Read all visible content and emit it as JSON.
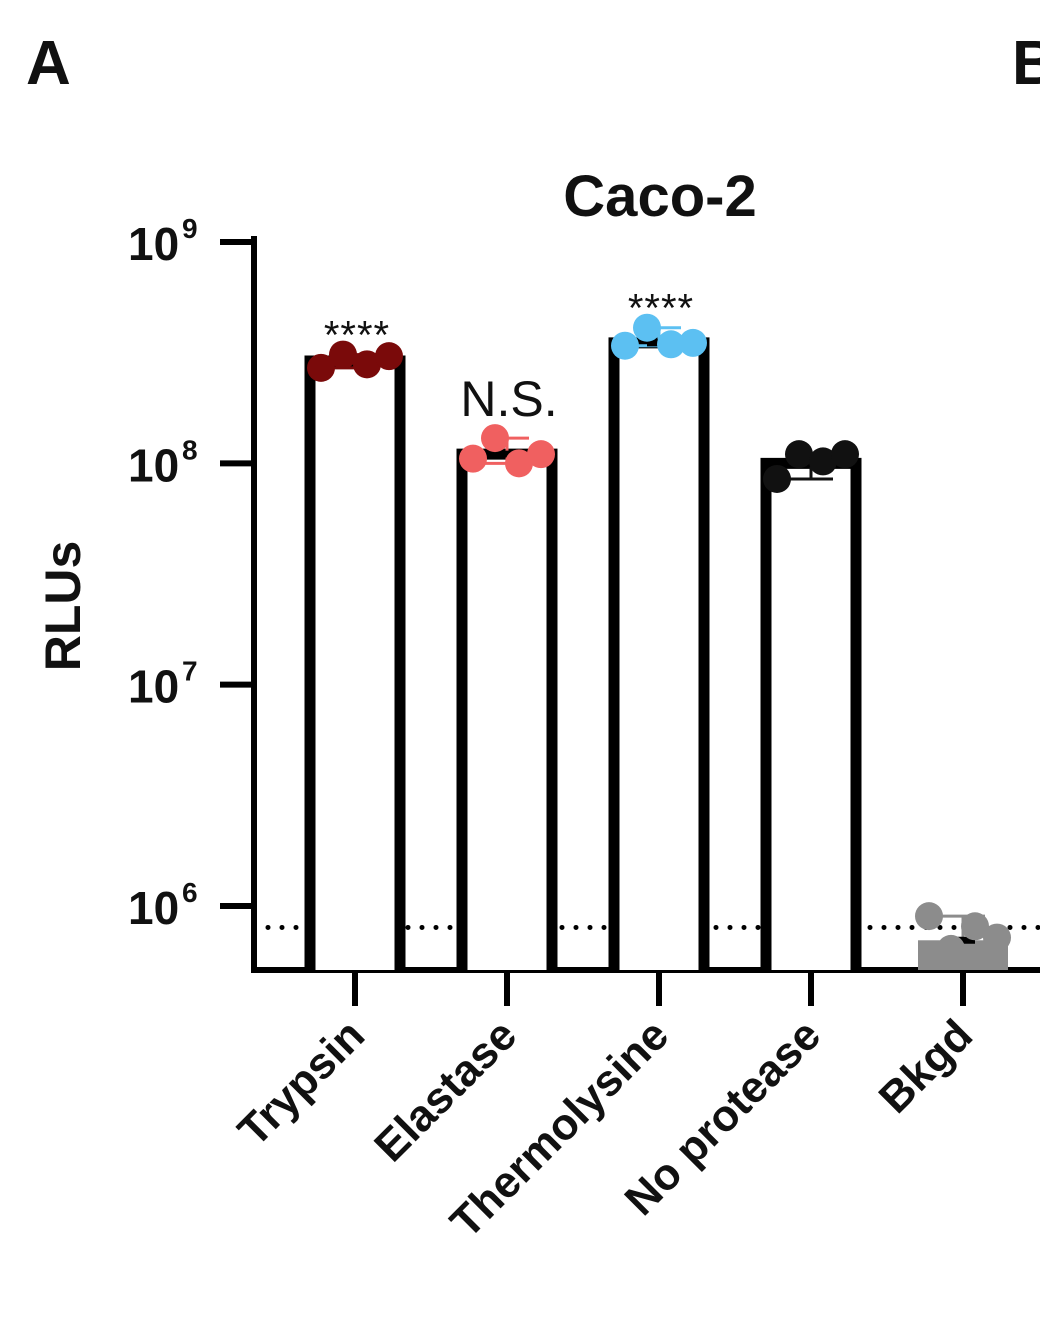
{
  "panel_letter": "A",
  "panel_letter_next": "B",
  "chart_data": {
    "type": "bar",
    "title": "Caco-2",
    "xlabel": "",
    "ylabel": "RLUs",
    "yscale": "log",
    "ylim": [
      550000,
      1000000000
    ],
    "yticks": [
      {
        "base": "10",
        "exp": "9",
        "value": 1000000000
      },
      {
        "base": "10",
        "exp": "8",
        "value": 100000000
      },
      {
        "base": "10",
        "exp": "7",
        "value": 10000000
      },
      {
        "base": "10",
        "exp": "6",
        "value": 1000000
      }
    ],
    "categories": [
      "Trypsin",
      "Elastase",
      "Thermolysine",
      "No protease",
      "Bkgd"
    ],
    "values": [
      290000000,
      110000000,
      350000000,
      100000000,
      700000
    ],
    "points": [
      [
        270000000,
        310000000,
        280000000,
        305000000
      ],
      [
        105000000,
        130000000,
        100000000,
        110000000
      ],
      [
        340000000,
        410000000,
        345000000,
        350000000
      ],
      [
        85000000,
        110000000,
        102000000,
        110000000
      ],
      [
        900000,
        640000,
        810000,
        720000
      ]
    ],
    "colors": [
      "#7a0a0a",
      "#f06060",
      "#5cc0f2",
      "#111111",
      "#8c8c8c"
    ],
    "filled_bar": [
      false,
      false,
      false,
      false,
      true
    ],
    "significance": [
      "****",
      "N.S.",
      "****",
      "",
      ""
    ],
    "reference_line": {
      "value": 800000,
      "style": "dotted"
    },
    "grid": false,
    "legend": "none"
  }
}
